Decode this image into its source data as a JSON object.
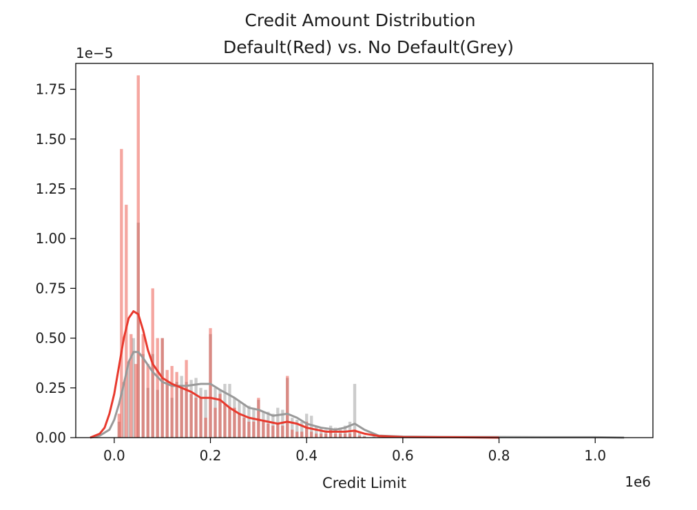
{
  "chart_data": {
    "type": "histogram",
    "title": "Credit Amount Distribution",
    "subtitle": "Default(Red) vs. No Default(Grey)",
    "xlabel": "Credit Limit",
    "ylabel": "",
    "x_offset_label": "1e6",
    "y_offset_label": "1e−5",
    "xlim": [
      -0.08,
      1.12
    ],
    "ylim": [
      0,
      1.88
    ],
    "xticks": [
      0.0,
      0.2,
      0.4,
      0.6,
      0.8,
      1.0
    ],
    "xtick_labels": [
      "0.0",
      "0.2",
      "0.4",
      "0.6",
      "0.8",
      "1.0"
    ],
    "yticks": [
      0.0,
      0.25,
      0.5,
      0.75,
      1.0,
      1.25,
      1.5,
      1.75
    ],
    "ytick_labels": [
      "0.00",
      "0.25",
      "0.50",
      "0.75",
      "1.00",
      "1.25",
      "1.50",
      "1.75"
    ],
    "series": [
      {
        "color": "#999999",
        "hist_alpha": 0.5,
        "hist_bins": [
          {
            "x": 0.01,
            "y": 0.08
          },
          {
            "x": 0.02,
            "y": 0.28
          },
          {
            "x": 0.03,
            "y": 0.38
          },
          {
            "x": 0.04,
            "y": 0.5
          },
          {
            "x": 0.05,
            "y": 1.08
          },
          {
            "x": 0.06,
            "y": 0.42
          },
          {
            "x": 0.07,
            "y": 0.25
          },
          {
            "x": 0.08,
            "y": 0.42
          },
          {
            "x": 0.09,
            "y": 0.24
          },
          {
            "x": 0.1,
            "y": 0.5
          },
          {
            "x": 0.11,
            "y": 0.28
          },
          {
            "x": 0.12,
            "y": 0.2
          },
          {
            "x": 0.13,
            "y": 0.28
          },
          {
            "x": 0.14,
            "y": 0.31
          },
          {
            "x": 0.15,
            "y": 0.28
          },
          {
            "x": 0.16,
            "y": 0.29
          },
          {
            "x": 0.17,
            "y": 0.3
          },
          {
            "x": 0.18,
            "y": 0.25
          },
          {
            "x": 0.19,
            "y": 0.24
          },
          {
            "x": 0.2,
            "y": 0.52
          },
          {
            "x": 0.21,
            "y": 0.25
          },
          {
            "x": 0.22,
            "y": 0.24
          },
          {
            "x": 0.23,
            "y": 0.27
          },
          {
            "x": 0.24,
            "y": 0.27
          },
          {
            "x": 0.25,
            "y": 0.2
          },
          {
            "x": 0.26,
            "y": 0.18
          },
          {
            "x": 0.27,
            "y": 0.17
          },
          {
            "x": 0.28,
            "y": 0.16
          },
          {
            "x": 0.29,
            "y": 0.15
          },
          {
            "x": 0.3,
            "y": 0.19
          },
          {
            "x": 0.31,
            "y": 0.13
          },
          {
            "x": 0.32,
            "y": 0.13
          },
          {
            "x": 0.33,
            "y": 0.12
          },
          {
            "x": 0.34,
            "y": 0.15
          },
          {
            "x": 0.35,
            "y": 0.14
          },
          {
            "x": 0.36,
            "y": 0.3
          },
          {
            "x": 0.37,
            "y": 0.1
          },
          {
            "x": 0.38,
            "y": 0.09
          },
          {
            "x": 0.39,
            "y": 0.08
          },
          {
            "x": 0.4,
            "y": 0.12
          },
          {
            "x": 0.41,
            "y": 0.11
          },
          {
            "x": 0.42,
            "y": 0.06
          },
          {
            "x": 0.43,
            "y": 0.05
          },
          {
            "x": 0.44,
            "y": 0.04
          },
          {
            "x": 0.45,
            "y": 0.06
          },
          {
            "x": 0.46,
            "y": 0.05
          },
          {
            "x": 0.47,
            "y": 0.05
          },
          {
            "x": 0.48,
            "y": 0.06
          },
          {
            "x": 0.49,
            "y": 0.08
          },
          {
            "x": 0.5,
            "y": 0.27
          },
          {
            "x": 0.51,
            "y": 0.03
          },
          {
            "x": 0.52,
            "y": 0.01
          },
          {
            "x": 0.54,
            "y": 0.01
          },
          {
            "x": 0.6,
            "y": 0.005
          },
          {
            "x": 0.7,
            "y": 0.003
          },
          {
            "x": 0.8,
            "y": 0.003
          },
          {
            "x": 0.9,
            "y": 0.002
          },
          {
            "x": 1.0,
            "y": 0.002
          }
        ],
        "kde_x": [
          -0.05,
          -0.03,
          -0.01,
          0.0,
          0.01,
          0.02,
          0.03,
          0.04,
          0.05,
          0.06,
          0.08,
          0.1,
          0.12,
          0.15,
          0.18,
          0.2,
          0.22,
          0.25,
          0.28,
          0.3,
          0.33,
          0.36,
          0.38,
          0.4,
          0.43,
          0.46,
          0.48,
          0.5,
          0.52,
          0.55,
          0.6,
          0.7,
          0.8,
          0.9,
          1.0,
          1.06
        ],
        "kde_y": [
          0.0,
          0.01,
          0.04,
          0.09,
          0.17,
          0.27,
          0.38,
          0.43,
          0.43,
          0.4,
          0.33,
          0.28,
          0.26,
          0.26,
          0.27,
          0.27,
          0.24,
          0.2,
          0.15,
          0.14,
          0.11,
          0.12,
          0.1,
          0.07,
          0.05,
          0.04,
          0.05,
          0.07,
          0.04,
          0.01,
          0.005,
          0.003,
          0.003,
          0.002,
          0.002,
          0.0
        ]
      },
      {
        "color": "#e8392d",
        "hist_alpha": 0.45,
        "hist_bins": [
          {
            "x": 0.01,
            "y": 0.12
          },
          {
            "x": 0.015,
            "y": 1.45
          },
          {
            "x": 0.025,
            "y": 1.17
          },
          {
            "x": 0.035,
            "y": 0.52
          },
          {
            "x": 0.045,
            "y": 0.37
          },
          {
            "x": 0.05,
            "y": 1.82
          },
          {
            "x": 0.06,
            "y": 0.52
          },
          {
            "x": 0.07,
            "y": 0.37
          },
          {
            "x": 0.08,
            "y": 0.75
          },
          {
            "x": 0.09,
            "y": 0.5
          },
          {
            "x": 0.1,
            "y": 0.5
          },
          {
            "x": 0.11,
            "y": 0.34
          },
          {
            "x": 0.12,
            "y": 0.36
          },
          {
            "x": 0.13,
            "y": 0.33
          },
          {
            "x": 0.14,
            "y": 0.25
          },
          {
            "x": 0.15,
            "y": 0.39
          },
          {
            "x": 0.16,
            "y": 0.22
          },
          {
            "x": 0.17,
            "y": 0.2
          },
          {
            "x": 0.18,
            "y": 0.2
          },
          {
            "x": 0.19,
            "y": 0.1
          },
          {
            "x": 0.2,
            "y": 0.55
          },
          {
            "x": 0.21,
            "y": 0.15
          },
          {
            "x": 0.22,
            "y": 0.22
          },
          {
            "x": 0.23,
            "y": 0.17
          },
          {
            "x": 0.24,
            "y": 0.15
          },
          {
            "x": 0.25,
            "y": 0.15
          },
          {
            "x": 0.26,
            "y": 0.12
          },
          {
            "x": 0.27,
            "y": 0.1
          },
          {
            "x": 0.28,
            "y": 0.08
          },
          {
            "x": 0.29,
            "y": 0.08
          },
          {
            "x": 0.3,
            "y": 0.2
          },
          {
            "x": 0.31,
            "y": 0.08
          },
          {
            "x": 0.32,
            "y": 0.07
          },
          {
            "x": 0.33,
            "y": 0.06
          },
          {
            "x": 0.34,
            "y": 0.07
          },
          {
            "x": 0.35,
            "y": 0.06
          },
          {
            "x": 0.36,
            "y": 0.31
          },
          {
            "x": 0.37,
            "y": 0.04
          },
          {
            "x": 0.38,
            "y": 0.03
          },
          {
            "x": 0.39,
            "y": 0.03
          },
          {
            "x": 0.4,
            "y": 0.08
          },
          {
            "x": 0.41,
            "y": 0.03
          },
          {
            "x": 0.42,
            "y": 0.02
          },
          {
            "x": 0.43,
            "y": 0.02
          },
          {
            "x": 0.44,
            "y": 0.02
          },
          {
            "x": 0.45,
            "y": 0.04
          },
          {
            "x": 0.46,
            "y": 0.02
          },
          {
            "x": 0.47,
            "y": 0.02
          },
          {
            "x": 0.48,
            "y": 0.02
          },
          {
            "x": 0.49,
            "y": 0.02
          },
          {
            "x": 0.5,
            "y": 0.04
          },
          {
            "x": 0.51,
            "y": 0.01
          },
          {
            "x": 0.52,
            "y": 0.005
          },
          {
            "x": 0.55,
            "y": 0.003
          },
          {
            "x": 0.6,
            "y": 0.002
          },
          {
            "x": 0.7,
            "y": 0.002
          },
          {
            "x": 0.8,
            "y": 0.002
          }
        ],
        "kde_x": [
          -0.05,
          -0.04,
          -0.03,
          -0.02,
          -0.01,
          0.0,
          0.01,
          0.02,
          0.03,
          0.04,
          0.05,
          0.06,
          0.07,
          0.08,
          0.1,
          0.12,
          0.14,
          0.16,
          0.18,
          0.2,
          0.22,
          0.24,
          0.26,
          0.28,
          0.3,
          0.32,
          0.34,
          0.36,
          0.38,
          0.4,
          0.42,
          0.44,
          0.46,
          0.48,
          0.5,
          0.52,
          0.55,
          0.6,
          0.7,
          0.8
        ],
        "kde_y": [
          0.0,
          0.01,
          0.02,
          0.05,
          0.12,
          0.22,
          0.36,
          0.5,
          0.6,
          0.635,
          0.62,
          0.54,
          0.44,
          0.37,
          0.3,
          0.27,
          0.25,
          0.23,
          0.2,
          0.2,
          0.19,
          0.15,
          0.12,
          0.1,
          0.09,
          0.08,
          0.07,
          0.08,
          0.07,
          0.05,
          0.04,
          0.03,
          0.03,
          0.03,
          0.035,
          0.02,
          0.008,
          0.003,
          0.002,
          0.0
        ]
      }
    ]
  }
}
